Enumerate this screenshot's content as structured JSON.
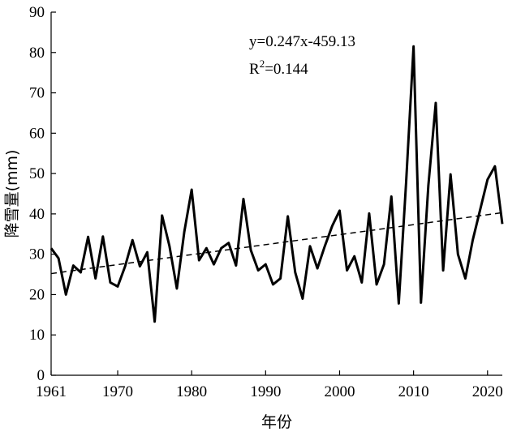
{
  "chart_data": {
    "type": "line",
    "xlabel": "年份",
    "ylabel": "降雪量(mm)",
    "xlim": [
      1961,
      2022
    ],
    "ylim": [
      0,
      90
    ],
    "xticks": [
      1961,
      1970,
      1980,
      1990,
      2000,
      2010,
      2020
    ],
    "yticks": [
      0,
      10,
      20,
      30,
      40,
      50,
      60,
      70,
      80,
      90
    ],
    "grid": false,
    "annotations": [
      "y=0.247x-459.13",
      "R2=0.144"
    ],
    "series": [
      {
        "x": [
          1961,
          1962,
          1963,
          1964,
          1965,
          1966,
          1967,
          1968,
          1969,
          1970,
          1971,
          1972,
          1973,
          1974,
          1975,
          1976,
          1977,
          1978,
          1979,
          1980,
          1981,
          1982,
          1983,
          1984,
          1985,
          1986,
          1987,
          1988,
          1989,
          1990,
          1991,
          1992,
          1993,
          1994,
          1995,
          1996,
          1997,
          1998,
          1999,
          2000,
          2001,
          2002,
          2003,
          2004,
          2005,
          2006,
          2007,
          2008,
          2009,
          2010,
          2011,
          2012,
          2013,
          2014,
          2015,
          2016,
          2017,
          2018,
          2019,
          2020,
          2021,
          2022
        ],
        "values": [
          31.5,
          29.0,
          20.0,
          27.2,
          25.5,
          34.3,
          24.0,
          34.4,
          23.0,
          22.0,
          27.0,
          33.5,
          27.0,
          30.5,
          13.3,
          39.6,
          32.0,
          21.5,
          35.5,
          46.0,
          28.5,
          31.5,
          27.5,
          31.5,
          32.8,
          27.2,
          43.7,
          31.0,
          26.0,
          27.5,
          22.5,
          24.0,
          39.4,
          25.5,
          19.0,
          32.0,
          26.5,
          32.0,
          37.0,
          40.8,
          26.0,
          29.5,
          23.0,
          40.1,
          22.5,
          27.5,
          44.3,
          17.8,
          48.0,
          81.5,
          18.0,
          47.0,
          67.5,
          26.0,
          49.8,
          30.0,
          24.0,
          33.5,
          41.0,
          48.5,
          51.8,
          37.5
        ]
      },
      {
        "type": "trendline",
        "x": [
          1961,
          2022
        ],
        "values": [
          25.2,
          40.3
        ]
      }
    ]
  }
}
